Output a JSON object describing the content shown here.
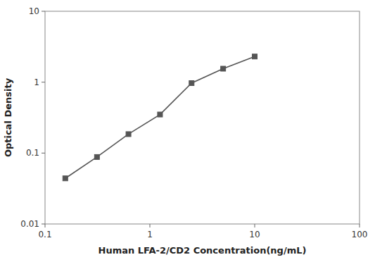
{
  "chart_data": {
    "type": "line",
    "x": [
      0.156,
      0.313,
      0.625,
      1.25,
      2.5,
      5.0,
      10.0
    ],
    "values": [
      0.044,
      0.088,
      0.185,
      0.35,
      0.97,
      1.55,
      2.3
    ],
    "x_label": "Human LFA-2/CD2 Concentration(ng/mL)",
    "y_label": "Optical Density",
    "xlim": [
      0.1,
      100
    ],
    "ylim": [
      0.01,
      10
    ],
    "xticks": [
      0.1,
      1,
      10,
      100
    ],
    "yticks": [
      0.01,
      0.1,
      1,
      10
    ],
    "log": true,
    "grid": false,
    "color": "#555555",
    "marker": "square"
  }
}
